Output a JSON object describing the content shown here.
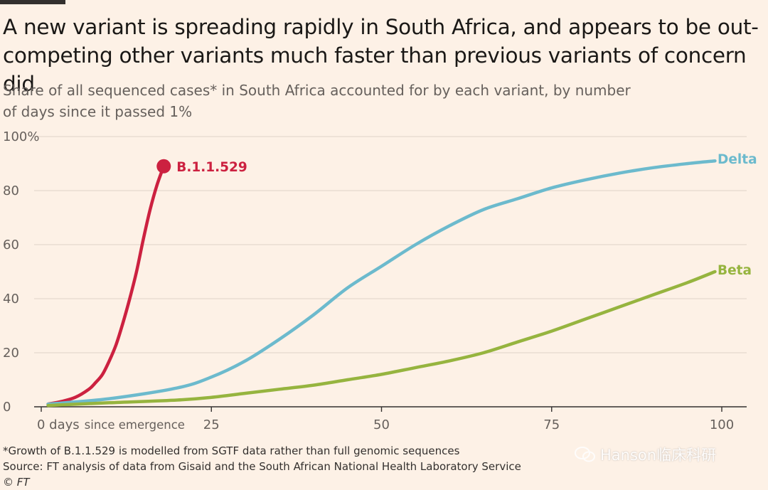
{
  "title": "A new variant is spreading rapidly in South Africa, and appears to be out-competing other variants much faster than previous variants of concern did",
  "subtitle": "Share of all sequenced cases* in South Africa accounted for by each variant, by number of days since it passed 1%",
  "footnote": "*Growth of B.1.1.529 is modelled from SGTF data rather than full genomic sequences",
  "source": "Source: FT analysis of data from Gisaid and the South African National Health Laboratory Service",
  "copyright": "© FT",
  "watermark": "Hanson临床科研",
  "chart_data": {
    "type": "line",
    "title": "A new variant is spreading rapidly in South Africa, and appears to be out-competing other variants much faster than previous variants of concern did",
    "xlabel": "days since emergence",
    "ylabel": "",
    "xlim": [
      0,
      100
    ],
    "ylim": [
      0,
      100
    ],
    "x_ticks": [
      {
        "value": 0,
        "label": "0 days",
        "suffix": "since emergence"
      },
      {
        "value": 25,
        "label": "25",
        "suffix": ""
      },
      {
        "value": 50,
        "label": "50",
        "suffix": ""
      },
      {
        "value": 75,
        "label": "75",
        "suffix": ""
      },
      {
        "value": 100,
        "label": "100",
        "suffix": ""
      }
    ],
    "y_ticks": [
      {
        "value": 0,
        "label": "0"
      },
      {
        "value": 20,
        "label": "20"
      },
      {
        "value": 40,
        "label": "40"
      },
      {
        "value": 60,
        "label": "60"
      },
      {
        "value": 80,
        "label": "80"
      },
      {
        "value": 100,
        "label": "100%"
      }
    ],
    "series": [
      {
        "name": "B.1.1.529",
        "color": "#cc2140",
        "end_marker": true,
        "x": [
          1,
          3,
          5,
          7,
          8,
          9,
          10,
          11,
          12,
          13,
          14,
          15,
          16,
          17,
          18
        ],
        "y": [
          1,
          2,
          3.5,
          6.5,
          9,
          12,
          17,
          23,
          31,
          40,
          50,
          62,
          73,
          82,
          89
        ]
      },
      {
        "name": "Delta",
        "color": "#6cbacd",
        "end_marker": false,
        "x": [
          1,
          10,
          20,
          25,
          30,
          35,
          40,
          45,
          50,
          55,
          60,
          65,
          70,
          75,
          80,
          85,
          90,
          95,
          99
        ],
        "y": [
          1,
          3,
          7,
          11,
          17,
          25,
          34,
          44,
          52,
          60,
          67,
          73,
          77,
          81,
          84,
          86.5,
          88.5,
          90,
          91
        ]
      },
      {
        "name": "Beta",
        "color": "#96b43f",
        "end_marker": false,
        "x": [
          1,
          10,
          20,
          25,
          30,
          35,
          40,
          45,
          50,
          55,
          60,
          65,
          70,
          75,
          80,
          85,
          90,
          95,
          99
        ],
        "y": [
          0.5,
          1.5,
          2.5,
          3.5,
          5,
          6.5,
          8,
          10,
          12,
          14.5,
          17,
          20,
          24,
          28,
          32.5,
          37,
          41.5,
          46,
          50
        ]
      }
    ]
  }
}
